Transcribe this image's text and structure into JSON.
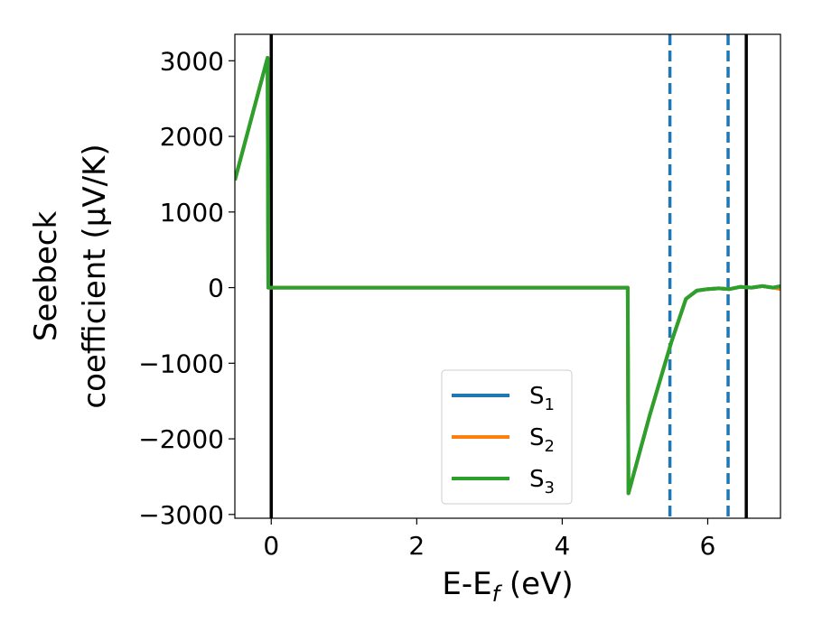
{
  "chart_data": {
    "type": "line",
    "xlabel": "E-E",
    "xlabel_sub": "f",
    "xlabel_unit": " (eV)",
    "ylabel_line1": "Seebeck",
    "ylabel_line2": "coefficient  (μV/K)",
    "xlim": [
      -0.5,
      7.0
    ],
    "ylim": [
      -3050,
      3350
    ],
    "xticks": [
      0,
      2,
      4,
      6
    ],
    "xtick_labels": [
      "0",
      "2",
      "4",
      "6"
    ],
    "yticks": [
      -3000,
      -2000,
      -1000,
      0,
      1000,
      2000,
      3000
    ],
    "ytick_labels": [
      "−3000",
      "−2000",
      "−1000",
      "0",
      "1000",
      "2000",
      "3000"
    ],
    "grid": false,
    "legend_position": "lower-center",
    "series": [
      {
        "name": "S",
        "sub": "1",
        "color": "#1f77b4",
        "x": [
          -0.5,
          -0.05,
          -0.04,
          0.0,
          1.0,
          2.0,
          3.0,
          4.0,
          4.9,
          4.91,
          5.2,
          5.5,
          5.7,
          5.85,
          6.0,
          6.15,
          6.3,
          6.45,
          6.6,
          6.75,
          6.9,
          7.0
        ],
        "y": [
          1420,
          3040,
          0,
          0,
          0,
          0,
          0,
          0,
          0,
          -2720,
          -1700,
          -720,
          -150,
          -40,
          -20,
          -10,
          -20,
          10,
          0,
          20,
          0,
          20
        ]
      },
      {
        "name": "S",
        "sub": "2",
        "color": "#ff7f0e",
        "x": [
          -0.5,
          -0.05,
          -0.04,
          0.0,
          1.0,
          2.0,
          3.0,
          4.0,
          4.9,
          4.91,
          5.2,
          5.5,
          5.7,
          5.85,
          6.0,
          6.15,
          6.3,
          6.45,
          6.6,
          6.75,
          6.9,
          7.0
        ],
        "y": [
          1420,
          3040,
          0,
          0,
          0,
          0,
          0,
          0,
          0,
          -2720,
          -1700,
          -720,
          -150,
          -40,
          -20,
          -10,
          -20,
          10,
          0,
          20,
          0,
          -20
        ]
      },
      {
        "name": "S",
        "sub": "3",
        "color": "#2ca02c",
        "x": [
          -0.5,
          -0.05,
          -0.04,
          0.0,
          1.0,
          2.0,
          3.0,
          4.0,
          4.9,
          4.91,
          5.2,
          5.5,
          5.7,
          5.85,
          6.0,
          6.15,
          6.3,
          6.45,
          6.6,
          6.75,
          6.9,
          7.0
        ],
        "y": [
          1420,
          3040,
          0,
          0,
          0,
          0,
          0,
          0,
          0,
          -2720,
          -1700,
          -720,
          -150,
          -40,
          -20,
          -10,
          -20,
          10,
          0,
          20,
          0,
          20
        ]
      }
    ],
    "vlines": [
      {
        "x": 0.0,
        "style": "solid",
        "color": "#000000"
      },
      {
        "x": 5.48,
        "style": "dashed",
        "color": "#1f77b4"
      },
      {
        "x": 6.28,
        "style": "dashed",
        "color": "#1f77b4"
      },
      {
        "x": 6.53,
        "style": "solid",
        "color": "#000000"
      }
    ]
  }
}
